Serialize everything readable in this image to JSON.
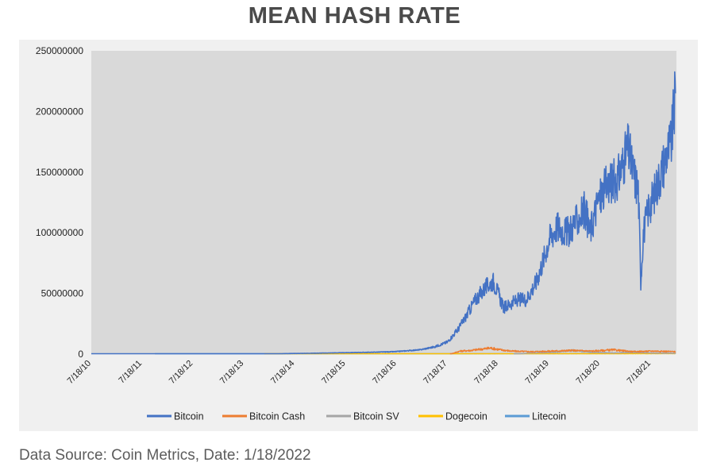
{
  "title": "MEAN HASH RATE",
  "source": "Data Source: Coin Metrics, Date: 1/18/2022",
  "chart_data": {
    "type": "line",
    "title": "MEAN HASH RATE",
    "xlabel": "",
    "ylabel": "",
    "x_tick_labels": [
      "7/18/10",
      "7/18/11",
      "7/18/12",
      "7/18/13",
      "7/18/14",
      "7/18/15",
      "7/18/16",
      "7/18/17",
      "7/18/18",
      "7/18/19",
      "7/18/20",
      "7/18/21"
    ],
    "x_range": [
      2010.55,
      2022.05
    ],
    "ylim": [
      0,
      250000000
    ],
    "y_ticks": [
      0,
      50000000,
      100000000,
      150000000,
      200000000,
      250000000
    ],
    "y_tick_labels": [
      "0",
      "50000000",
      "100000000",
      "150000000",
      "200000000",
      "250000000"
    ],
    "grid": false,
    "legend_position": "bottom",
    "plot_background": "#d9d9d9",
    "series": [
      {
        "name": "Bitcoin",
        "color": "#4472c4",
        "x": [
          2010.55,
          2013.0,
          2014.0,
          2015.0,
          2016.0,
          2016.5,
          2017.0,
          2017.3,
          2017.55,
          2017.75,
          2017.9,
          2018.1,
          2018.3,
          2018.45,
          2018.55,
          2018.65,
          2018.8,
          2018.95,
          2019.1,
          2019.3,
          2019.45,
          2019.55,
          2019.7,
          2019.9,
          2020.1,
          2020.25,
          2020.35,
          2020.5,
          2020.7,
          2020.9,
          2021.1,
          2021.2,
          2021.3,
          2021.35,
          2021.4,
          2021.5,
          2021.6,
          2021.75,
          2021.85,
          2021.95,
          2022.03
        ],
        "y": [
          0,
          100000,
          200000,
          800000,
          1500000,
          2000000,
          3500000,
          6000000,
          10000000,
          20000000,
          30000000,
          45000000,
          55000000,
          60000000,
          50000000,
          38000000,
          42000000,
          45000000,
          45000000,
          60000000,
          80000000,
          95000000,
          105000000,
          100000000,
          110000000,
          120000000,
          100000000,
          125000000,
          140000000,
          145000000,
          170000000,
          150000000,
          135000000,
          60000000,
          100000000,
          120000000,
          130000000,
          150000000,
          165000000,
          175000000,
          215000000
        ]
      },
      {
        "name": "Bitcoin Cash",
        "color": "#ed7d31",
        "x": [
          2017.6,
          2017.8,
          2018.0,
          2018.2,
          2018.4,
          2018.6,
          2018.8,
          2019.2,
          2019.6,
          2020.0,
          2020.4,
          2020.8,
          2021.2,
          2021.6,
          2022.03
        ],
        "y": [
          0,
          2500000,
          3000000,
          4000000,
          5000000,
          3500000,
          2500000,
          2000000,
          2500000,
          3000000,
          2500000,
          3500000,
          2000000,
          2500000,
          2000000
        ]
      },
      {
        "name": "Bitcoin SV",
        "color": "#a5a5a5",
        "x": [
          2018.85,
          2019.2,
          2019.6,
          2020.0,
          2020.4,
          2020.8,
          2021.2,
          2021.6,
          2022.03
        ],
        "y": [
          0,
          1000000,
          1500000,
          3000000,
          1500000,
          1000000,
          1500000,
          800000,
          700000
        ]
      },
      {
        "name": "Dogecoin",
        "color": "#ffc000",
        "x": [
          2013.95,
          2016.0,
          2018.0,
          2020.0,
          2022.03
        ],
        "y": [
          0,
          50000,
          100000,
          200000,
          400000
        ]
      },
      {
        "name": "Litecoin",
        "color": "#5b9bd5",
        "x": [
          2011.8,
          2014.0,
          2016.0,
          2018.0,
          2020.0,
          2022.03
        ],
        "y": [
          0,
          50000,
          100000,
          300000,
          400000,
          600000
        ]
      }
    ]
  }
}
